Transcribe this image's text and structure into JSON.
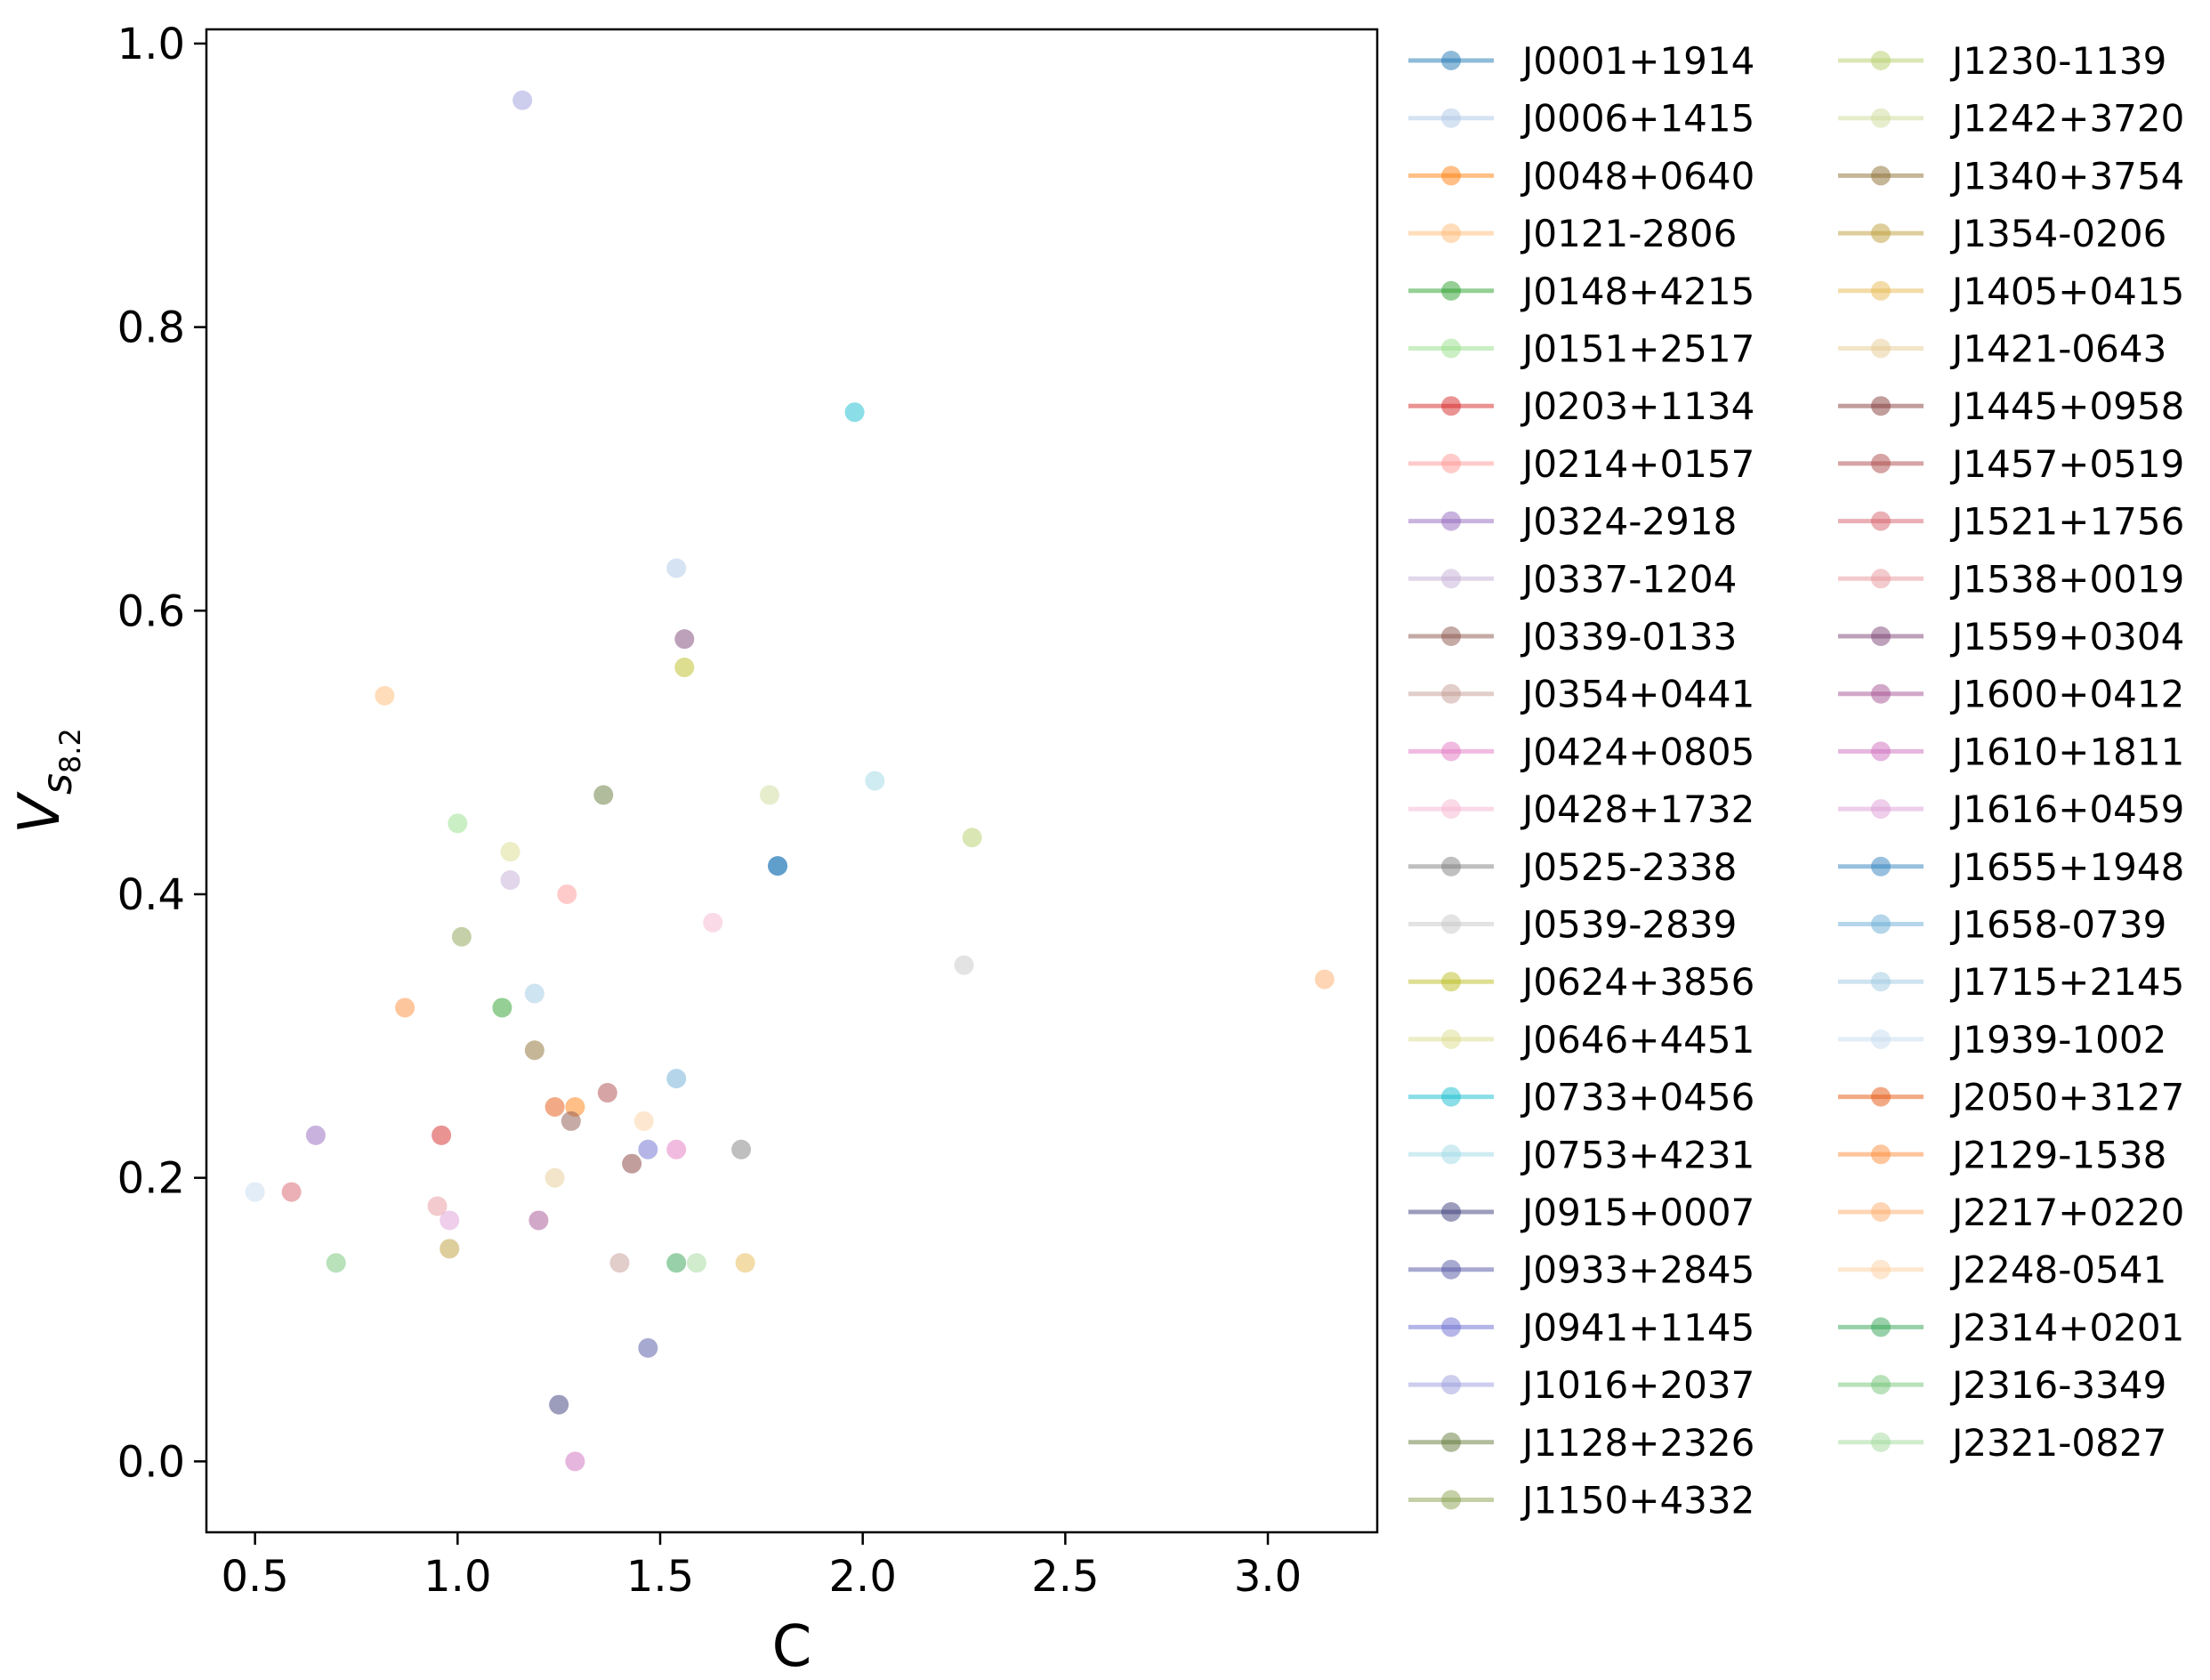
{
  "chart_data": {
    "type": "scatter",
    "title": "",
    "xlabel": "C",
    "ylabel": "V",
    "ylabel_sub": "s",
    "ylabel_subsub": "8.2",
    "xlim": [
      0.38,
      3.27
    ],
    "ylim": [
      -0.05,
      1.01
    ],
    "xticks": [
      "0.5",
      "1.0",
      "1.5",
      "2.0",
      "2.5",
      "3.0"
    ],
    "xtick_values": [
      0.5,
      1.0,
      1.5,
      2.0,
      2.5,
      3.0
    ],
    "yticks": [
      "0.0",
      "0.2",
      "0.4",
      "0.6",
      "0.8",
      "1.0"
    ],
    "ytick_values": [
      0.0,
      0.2,
      0.4,
      0.6,
      0.8,
      1.0
    ],
    "grid": false,
    "legend_placement": "outside-right",
    "series": [
      {
        "name": "J0001+1914",
        "color": "#1f77b4",
        "x": 1.79,
        "y": 0.42
      },
      {
        "name": "J0006+1415",
        "color": "#aec7e8",
        "x": 1.54,
        "y": 0.63
      },
      {
        "name": "J0048+0640",
        "color": "#ff7f0e",
        "x": 1.29,
        "y": 0.25
      },
      {
        "name": "J0121-2806",
        "color": "#ffbb78",
        "x": 0.82,
        "y": 0.54
      },
      {
        "name": "J0148+4215",
        "color": "#2ca02c",
        "x": 1.11,
        "y": 0.32
      },
      {
        "name": "J0151+2517",
        "color": "#98df8a",
        "x": 1.0,
        "y": 0.45
      },
      {
        "name": "J0203+1134",
        "color": "#d62728",
        "x": 0.96,
        "y": 0.23
      },
      {
        "name": "J0214+0157",
        "color": "#ff9896",
        "x": 1.27,
        "y": 0.4
      },
      {
        "name": "J0324-2918",
        "color": "#9467bd",
        "x": 0.65,
        "y": 0.23
      },
      {
        "name": "J0337-1204",
        "color": "#c5b0d5",
        "x": 1.13,
        "y": 0.41
      },
      {
        "name": "J0339-0133",
        "color": "#8c564b",
        "x": 1.28,
        "y": 0.24
      },
      {
        "name": "J0354+0441",
        "color": "#c49c94",
        "x": 1.4,
        "y": 0.14
      },
      {
        "name": "J0424+0805",
        "color": "#e377c2",
        "x": 1.54,
        "y": 0.22
      },
      {
        "name": "J0428+1732",
        "color": "#f7b6d2",
        "x": 1.63,
        "y": 0.38
      },
      {
        "name": "J0525-2338",
        "color": "#7f7f7f",
        "x": 1.7,
        "y": 0.22
      },
      {
        "name": "J0539-2839",
        "color": "#c7c7c7",
        "x": 2.25,
        "y": 0.35
      },
      {
        "name": "J0624+3856",
        "color": "#bcbd22",
        "x": 1.56,
        "y": 0.56
      },
      {
        "name": "J0646+4451",
        "color": "#dbdb8d",
        "x": 1.13,
        "y": 0.43
      },
      {
        "name": "J0733+0456",
        "color": "#17becf",
        "x": 1.98,
        "y": 0.74
      },
      {
        "name": "J0753+4231",
        "color": "#9edae5",
        "x": 2.03,
        "y": 0.48
      },
      {
        "name": "J0915+0007",
        "color": "#393b79",
        "x": 1.25,
        "y": 0.04
      },
      {
        "name": "J0933+2845",
        "color": "#5254a3",
        "x": 1.47,
        "y": 0.08
      },
      {
        "name": "J0941+1145",
        "color": "#6b6ecf",
        "x": 1.47,
        "y": 0.22
      },
      {
        "name": "J1016+2037",
        "color": "#9c9ede",
        "x": 1.16,
        "y": 0.96
      },
      {
        "name": "J1128+2326",
        "color": "#637939",
        "x": 1.36,
        "y": 0.47
      },
      {
        "name": "J1150+4332",
        "color": "#8ca252",
        "x": 1.01,
        "y": 0.37
      },
      {
        "name": "J1230-1139",
        "color": "#b5cf6b",
        "x": 2.27,
        "y": 0.44
      },
      {
        "name": "J1242+3720",
        "color": "#cedb9c",
        "x": 1.77,
        "y": 0.47
      },
      {
        "name": "J1340+3754",
        "color": "#8c6d31",
        "x": 1.19,
        "y": 0.29
      },
      {
        "name": "J1354-0206",
        "color": "#bd9e39",
        "x": 0.98,
        "y": 0.15
      },
      {
        "name": "J1405+0415",
        "color": "#e7ba52",
        "x": 1.71,
        "y": 0.14
      },
      {
        "name": "J1421-0643",
        "color": "#e7cb94",
        "x": 1.24,
        "y": 0.2
      },
      {
        "name": "J1445+0958",
        "color": "#843c39",
        "x": 1.43,
        "y": 0.21
      },
      {
        "name": "J1457+0519",
        "color": "#ad494a",
        "x": 1.37,
        "y": 0.26
      },
      {
        "name": "J1521+1756",
        "color": "#d6616b",
        "x": 0.59,
        "y": 0.19
      },
      {
        "name": "J1538+0019",
        "color": "#e7969c",
        "x": 0.95,
        "y": 0.18
      },
      {
        "name": "J1559+0304",
        "color": "#7b4173",
        "x": 1.56,
        "y": 0.58
      },
      {
        "name": "J1600+0412",
        "color": "#a55194",
        "x": 1.2,
        "y": 0.17
      },
      {
        "name": "J1610+1811",
        "color": "#ce6dbd",
        "x": 1.29,
        "y": 0.0
      },
      {
        "name": "J1616+0459",
        "color": "#de9ed6",
        "x": 0.98,
        "y": 0.17
      },
      {
        "name": "J1655+1948",
        "color": "#3182bd",
        "x": 1.79,
        "y": 0.42
      },
      {
        "name": "J1658-0739",
        "color": "#6baed6",
        "x": 1.54,
        "y": 0.27
      },
      {
        "name": "J1715+2145",
        "color": "#9ecae1",
        "x": 1.19,
        "y": 0.33
      },
      {
        "name": "J1939-1002",
        "color": "#c6dbef",
        "x": 0.5,
        "y": 0.19
      },
      {
        "name": "J2050+3127",
        "color": "#e6550d",
        "x": 1.24,
        "y": 0.25
      },
      {
        "name": "J2129-1538",
        "color": "#fd8d3c",
        "x": 0.87,
        "y": 0.32
      },
      {
        "name": "J2217+0220",
        "color": "#fdae6b",
        "x": 3.14,
        "y": 0.34
      },
      {
        "name": "J2248-0541",
        "color": "#fdd0a2",
        "x": 1.46,
        "y": 0.24
      },
      {
        "name": "J2314+0201",
        "color": "#31a354",
        "x": 1.54,
        "y": 0.14
      },
      {
        "name": "J2316-3349",
        "color": "#74c476",
        "x": 0.7,
        "y": 0.14
      },
      {
        "name": "J2321-0827",
        "color": "#a1d99b",
        "x": 1.59,
        "y": 0.14
      }
    ]
  }
}
